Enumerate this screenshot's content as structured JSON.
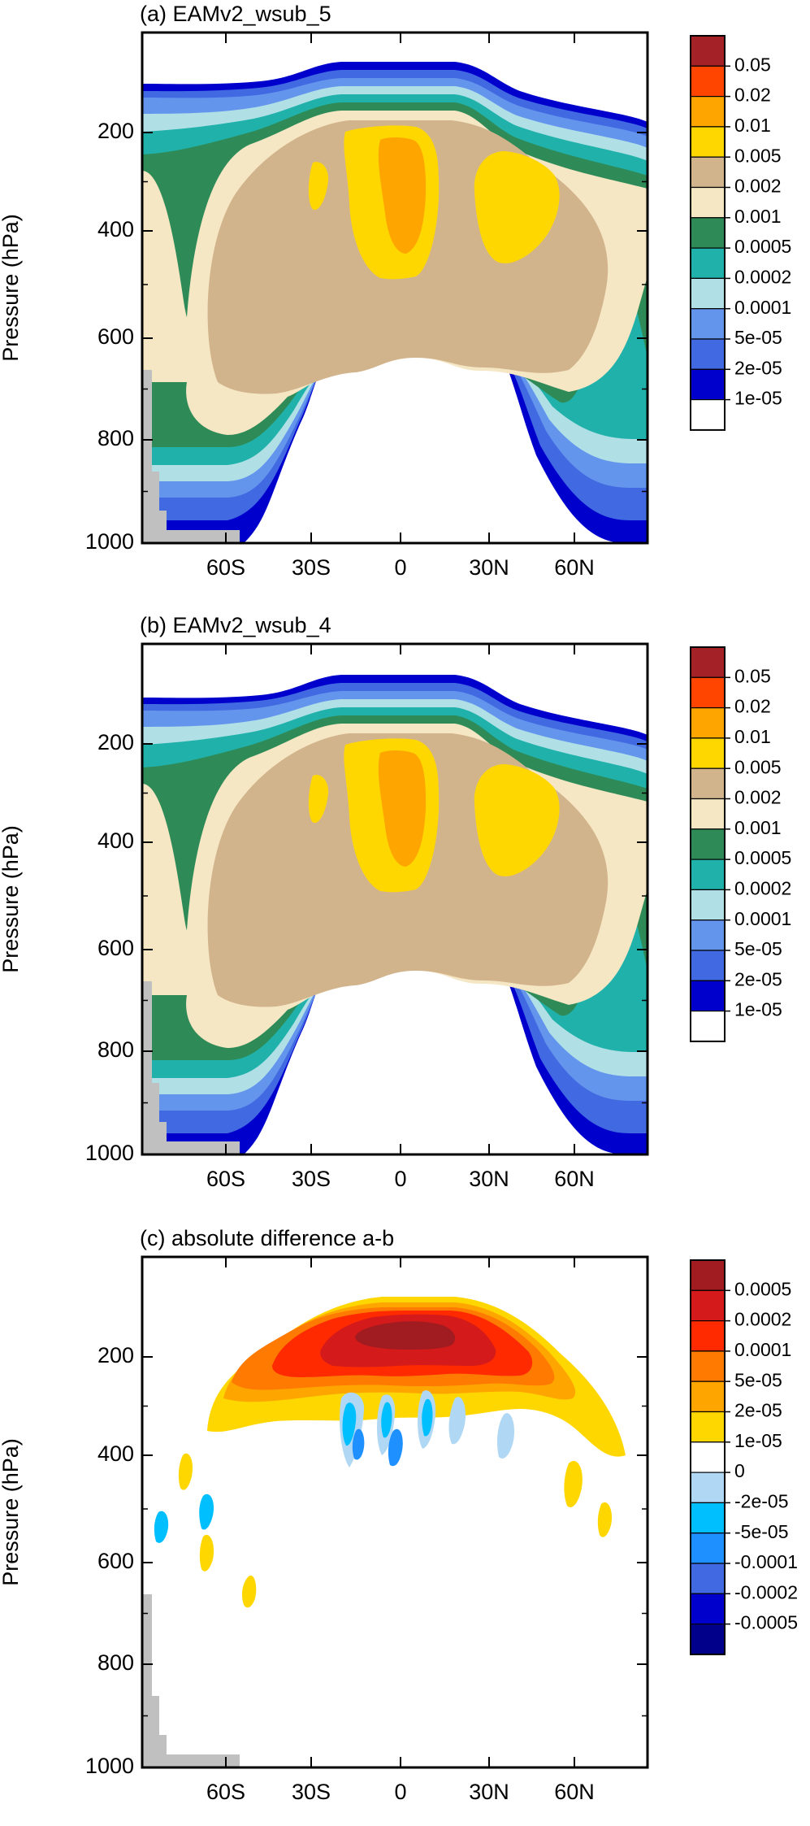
{
  "chart_data": [
    {
      "type": "contour",
      "title": "(a) EAMv2_wsub_5",
      "ylabel": "Pressure (hPa)",
      "x_ticks": [
        "60S",
        "30S",
        "0",
        "30N",
        "60N"
      ],
      "y_ticks": [
        "200",
        "400",
        "600",
        "800",
        "1000"
      ],
      "x_range": [
        "90S",
        "90N"
      ],
      "y_range": [
        50,
        1000
      ],
      "legend_labels": [
        "0.05",
        "0.02",
        "0.01",
        "0.005",
        "0.002",
        "0.001",
        "0.0005",
        "0.0002",
        "0.0001",
        "5e-05",
        "2e-05",
        "1e-05"
      ],
      "legend_colors": [
        "#a52128",
        "#ff4500",
        "#ffa500",
        "#ffd700",
        "#d2b48c",
        "#f5e6c4",
        "#2e8b57",
        "#20b2aa",
        "#b0e0e6",
        "#6495ed",
        "#4169e1",
        "#0000cd",
        "#ffffff"
      ]
    },
    {
      "type": "contour",
      "title": "(b) EAMv2_wsub_4",
      "ylabel": "Pressure (hPa)",
      "x_ticks": [
        "60S",
        "30S",
        "0",
        "30N",
        "60N"
      ],
      "y_ticks": [
        "200",
        "400",
        "600",
        "800",
        "1000"
      ],
      "x_range": [
        "90S",
        "90N"
      ],
      "y_range": [
        50,
        1000
      ],
      "legend_labels": [
        "0.05",
        "0.02",
        "0.01",
        "0.005",
        "0.002",
        "0.001",
        "0.0005",
        "0.0002",
        "0.0001",
        "5e-05",
        "2e-05",
        "1e-05"
      ],
      "legend_colors": [
        "#a52128",
        "#ff4500",
        "#ffa500",
        "#ffd700",
        "#d2b48c",
        "#f5e6c4",
        "#2e8b57",
        "#20b2aa",
        "#b0e0e6",
        "#6495ed",
        "#4169e1",
        "#0000cd",
        "#ffffff"
      ]
    },
    {
      "type": "contour",
      "title": "(c) absolute difference a-b",
      "ylabel": "Pressure (hPa)",
      "x_ticks": [
        "60S",
        "30S",
        "0",
        "30N",
        "60N"
      ],
      "y_ticks": [
        "200",
        "400",
        "600",
        "800",
        "1000"
      ],
      "x_range": [
        "90S",
        "90N"
      ],
      "y_range": [
        50,
        1000
      ],
      "legend_labels": [
        "0.0005",
        "0.0002",
        "0.0001",
        "5e-05",
        "2e-05",
        "1e-05",
        "0",
        "-2e-05",
        "-5e-05",
        "-0.0001",
        "-0.0002",
        "-0.0005"
      ],
      "legend_colors": [
        "#a01c20",
        "#d41a1a",
        "#ff2a00",
        "#ff7a00",
        "#ffa500",
        "#ffd700",
        "#ffffff",
        "#b0d8f5",
        "#00bfff",
        "#1e90ff",
        "#4169e1",
        "#0000cd",
        "#00008b"
      ]
    }
  ]
}
